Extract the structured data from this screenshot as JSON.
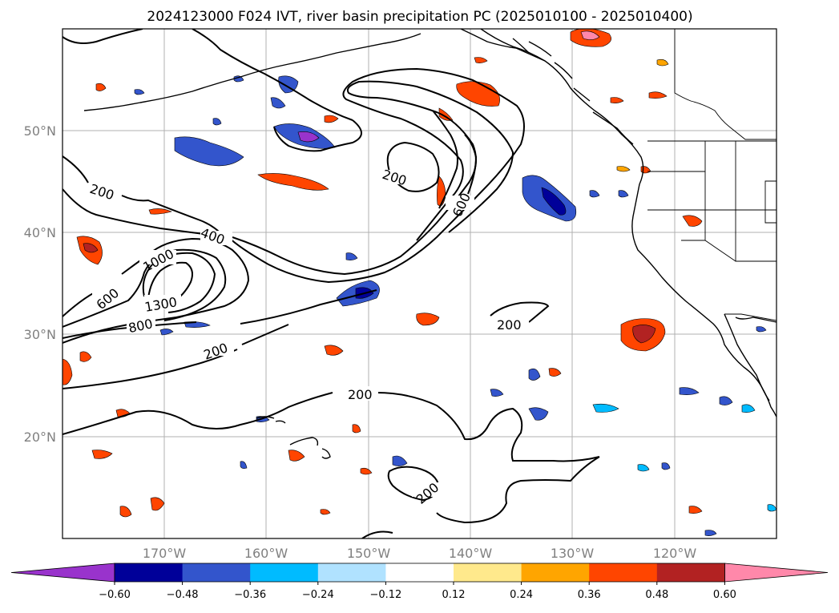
{
  "title": "2024123000 F024 IVT, river basin precipitation PC (2025010100 - 2025010400)",
  "map": {
    "lat_labels": [
      "50°N",
      "40°N",
      "30°N",
      "20°N"
    ],
    "lon_labels": [
      "170°W",
      "160°W",
      "150°W",
      "140°W",
      "130°W",
      "120°W"
    ],
    "grid_lats": [
      50,
      40,
      30,
      20
    ],
    "grid_lons": [
      -170,
      -160,
      -150,
      -140,
      -130,
      -120
    ],
    "extent": {
      "lon_min": -180,
      "lon_max": -110,
      "lat_min": 10,
      "lat_max": 60
    },
    "ivt_contour_labels": [
      "200",
      "200",
      "200",
      "200",
      "200",
      "200",
      "400",
      "600",
      "600",
      "800",
      "1000",
      "1300"
    ]
  },
  "colorbar": {
    "ticks": [
      "−0.60",
      "−0.48",
      "−0.36",
      "−0.24",
      "−0.12",
      "0.12",
      "0.24",
      "0.36",
      "0.48",
      "0.60"
    ],
    "colors": [
      "#9933cc",
      "#000099",
      "#3355cc",
      "#00bbff",
      "#b0e2ff",
      "#ffffff",
      "#ffe98c",
      "#ffa500",
      "#ff4500",
      "#b22222",
      "#ff88aa"
    ],
    "extend": "both"
  },
  "colors": {
    "land_line": "#000000",
    "grid": "#b0b0b0",
    "contour": "#000000"
  }
}
